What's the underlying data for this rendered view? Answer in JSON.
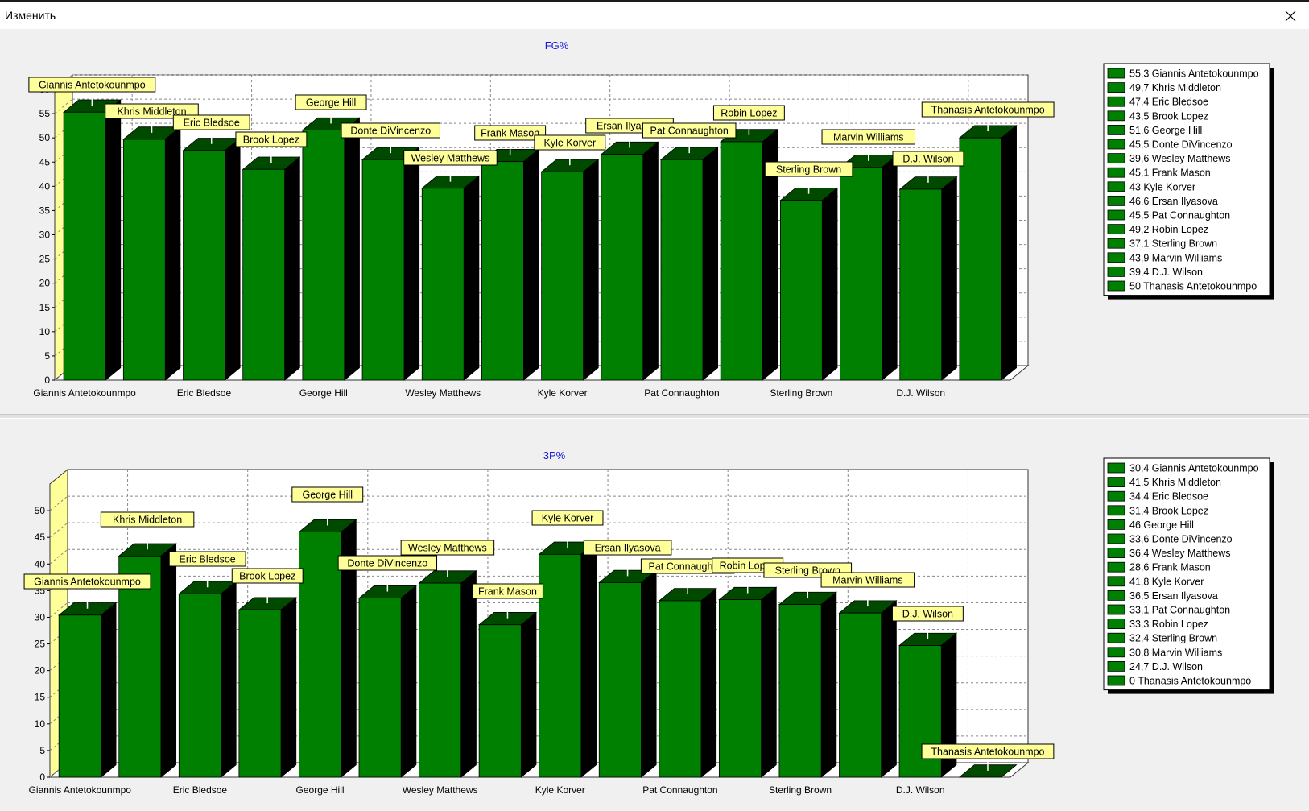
{
  "window": {
    "title": "Изменить"
  },
  "colors": {
    "bar_front": "#008000",
    "bar_top": "#004a00",
    "bar_side": "#000000",
    "label_bg": "#ffff99",
    "wall": "#ffff99",
    "title": "#1515d8"
  },
  "chart_data": [
    {
      "type": "bar",
      "title": "FG%",
      "ylim": [
        0,
        60
      ],
      "yticks": [
        0,
        5,
        10,
        15,
        20,
        25,
        30,
        35,
        40,
        45,
        50,
        55,
        60
      ],
      "grid": true,
      "legend_position": "right",
      "categories": [
        "Giannis Antetokounmpo",
        "Khris Middleton",
        "Eric Bledsoe",
        "Brook Lopez",
        "George Hill",
        "Donte DiVincenzo",
        "Wesley Matthews",
        "Frank Mason",
        "Kyle Korver",
        "Ersan Ilyasova",
        "Pat Connaughton",
        "Robin Lopez",
        "Sterling Brown",
        "Marvin Williams",
        "D.J. Wilson",
        "Thanasis Antetokounmpo"
      ],
      "values": [
        55.3,
        49.7,
        47.4,
        43.5,
        51.6,
        45.5,
        39.6,
        45.1,
        43,
        46.6,
        45.5,
        49.2,
        37.1,
        43.9,
        39.4,
        50
      ],
      "x_tick_labels": [
        "Giannis Antetokounmpo",
        "Eric Bledsoe",
        "George Hill",
        "Wesley Matthews",
        "Kyle Korver",
        "Pat Connaughton",
        "Sterling Brown",
        "D.J. Wilson"
      ],
      "legend": [
        "55,3 Giannis Antetokounmpo",
        "49,7 Khris Middleton",
        "47,4 Eric Bledsoe",
        "43,5 Brook Lopez",
        "51,6 George Hill",
        "45,5 Donte DiVincenzo",
        "39,6 Wesley Matthews",
        "45,1 Frank Mason",
        "43 Kyle Korver",
        "46,6 Ersan Ilyasova",
        "45,5 Pat Connaughton",
        "49,2 Robin Lopez",
        "37,1 Sterling Brown",
        "43,9 Marvin Williams",
        "39,4 D.J. Wilson",
        "50 Thanasis Antetokounmpo"
      ]
    },
    {
      "type": "bar",
      "title": "3P%",
      "ylim": [
        0,
        55
      ],
      "yticks": [
        0,
        5,
        10,
        15,
        20,
        25,
        30,
        35,
        40,
        45,
        50
      ],
      "grid": true,
      "legend_position": "right",
      "categories": [
        "Giannis Antetokounmpo",
        "Khris Middleton",
        "Eric Bledsoe",
        "Brook Lopez",
        "George Hill",
        "Donte DiVincenzo",
        "Wesley Matthews",
        "Frank Mason",
        "Kyle Korver",
        "Ersan Ilyasova",
        "Pat Connaughton",
        "Robin Lopez",
        "Sterling Brown",
        "Marvin Williams",
        "D.J. Wilson",
        "Thanasis Antetokounmpo"
      ],
      "values": [
        30.4,
        41.5,
        34.4,
        31.4,
        46,
        33.6,
        36.4,
        28.6,
        41.8,
        36.5,
        33.1,
        33.3,
        32.4,
        30.8,
        24.7,
        0
      ],
      "x_tick_labels": [
        "Giannis Antetokounmpo",
        "Eric Bledsoe",
        "George Hill",
        "Wesley Matthews",
        "Kyle Korver",
        "Pat Connaughton",
        "Sterling Brown",
        "D.J. Wilson"
      ],
      "legend": [
        "30,4 Giannis Antetokounmpo",
        "41,5 Khris Middleton",
        "34,4 Eric Bledsoe",
        "31,4 Brook Lopez",
        "46 George Hill",
        "33,6 Donte DiVincenzo",
        "36,4 Wesley Matthews",
        "28,6 Frank Mason",
        "41,8 Kyle Korver",
        "36,5 Ersan Ilyasova",
        "33,1 Pat Connaughton",
        "33,3 Robin Lopez",
        "32,4 Sterling Brown",
        "30,8 Marvin Williams",
        "24,7 D.J. Wilson",
        "0 Thanasis Antetokounmpo"
      ]
    }
  ]
}
